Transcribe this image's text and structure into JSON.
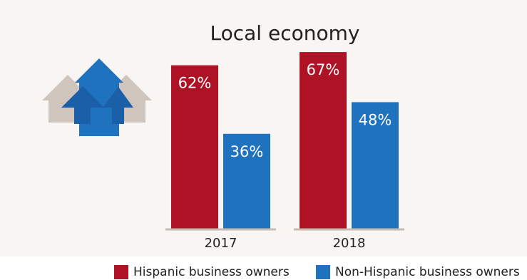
{
  "chart_data": {
    "type": "bar",
    "title": "Local economy",
    "categories": [
      "2017",
      "2018"
    ],
    "series": [
      {
        "name": "Hispanic business owners",
        "values": [
          62,
          67
        ],
        "labels": [
          "62%",
          "67%"
        ],
        "color": "#ae1325"
      },
      {
        "name": "Non-Hispanic business owners",
        "values": [
          36,
          48
        ],
        "labels": [
          "36%",
          "48%"
        ],
        "color": "#1f72bd"
      }
    ],
    "ylim": [
      0,
      70
    ],
    "grid": false,
    "legend": "bottom",
    "icon": "houses-with-up-arrows-icon"
  },
  "colors": {
    "background": "#f9f5f2",
    "house": "#cfc5bd",
    "house_blue": "#1f72bd",
    "arrow": "#1b5fa8",
    "axis": "#c6bcb4"
  }
}
